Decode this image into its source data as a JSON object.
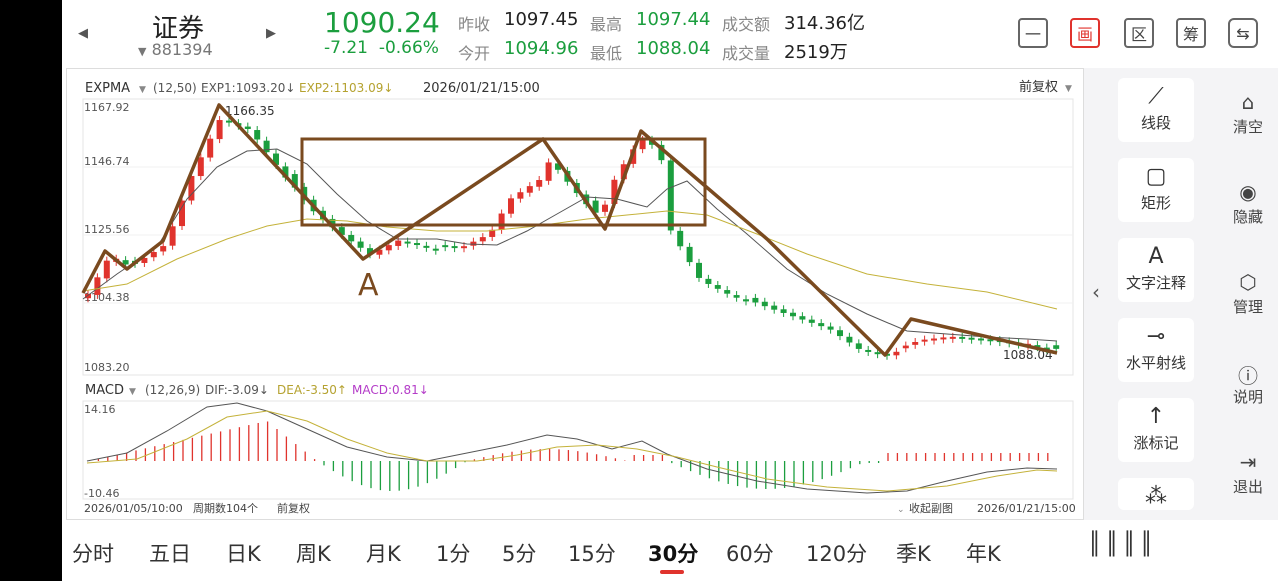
{
  "header": {
    "name": "证券",
    "code": "881394",
    "price": "1090.24",
    "change": "-7.21",
    "change_pct": "-0.66%",
    "prev_close_label": "昨收",
    "prev_close": "1097.45",
    "high_label": "最高",
    "high": "1097.44",
    "turnover_label": "成交额",
    "turnover": "314.36亿",
    "open_label": "今开",
    "open": "1094.96",
    "low_label": "最低",
    "low": "1088.04",
    "volume_label": "成交量",
    "volume": "2519万",
    "toolbar": [
      {
        "name": "minus",
        "label": "一"
      },
      {
        "name": "draw",
        "label": "画",
        "active": true
      },
      {
        "name": "interval",
        "label": "区"
      },
      {
        "name": "chips",
        "label": "筹"
      },
      {
        "name": "device",
        "label": "⇆"
      }
    ]
  },
  "chart": {
    "indicator": "EXPMA",
    "params": "(12,50)",
    "exp1": "EXP1:1093.20↓",
    "exp2": "EXP2:1103.09↓",
    "datetime": "2026/01/21/15:00",
    "adjust": "前复权",
    "price_ticks": [
      "1167.92",
      "1146.74",
      "1125.56",
      "1104.38",
      "1083.20"
    ],
    "high_marker": "1166.35",
    "last_marker": "1088.04",
    "annotation": "A",
    "macd_indicator": "MACD",
    "macd_params": "(12,26,9)",
    "dif": "DIF:-3.09↓",
    "dea": "DEA:-3.50↑",
    "macd": "MACD:0.81↓",
    "macd_top": "14.16",
    "macd_bottom": "-10.46",
    "start_date": "2026/01/05/10:00",
    "period_count": "周期数104个",
    "bottom_adjust": "前复权",
    "collapse": "收起副图",
    "end_date": "2026/01/21/15:00",
    "colors": {
      "up": "#e0332d",
      "down": "#1b9e3e",
      "drawing": "#7a4a1f",
      "exp1": "#555555",
      "exp2": "#c4b23a"
    }
  },
  "tools": [
    {
      "icon": "line-segment-icon",
      "label": "线段"
    },
    {
      "icon": "rectangle-icon",
      "label": "矩形"
    },
    {
      "icon": "text-icon",
      "label": "文字注释"
    },
    {
      "icon": "horizontal-ray-icon",
      "label": "水平射线"
    },
    {
      "icon": "rise-marker-icon",
      "label": "涨标记"
    }
  ],
  "side_actions": [
    {
      "icon": "clear-icon",
      "label": "清空"
    },
    {
      "icon": "eye-icon",
      "label": "隐藏"
    },
    {
      "icon": "manage-icon",
      "label": "管理"
    },
    {
      "icon": "help-icon",
      "label": "说明"
    },
    {
      "icon": "exit-icon",
      "label": "退出"
    }
  ],
  "period_tabs": [
    "分时",
    "五日",
    "日K",
    "周K",
    "月K",
    "1分",
    "5分",
    "15分",
    "30分",
    "60分",
    "120分",
    "季K",
    "年K"
  ],
  "active_tab": "30分"
}
